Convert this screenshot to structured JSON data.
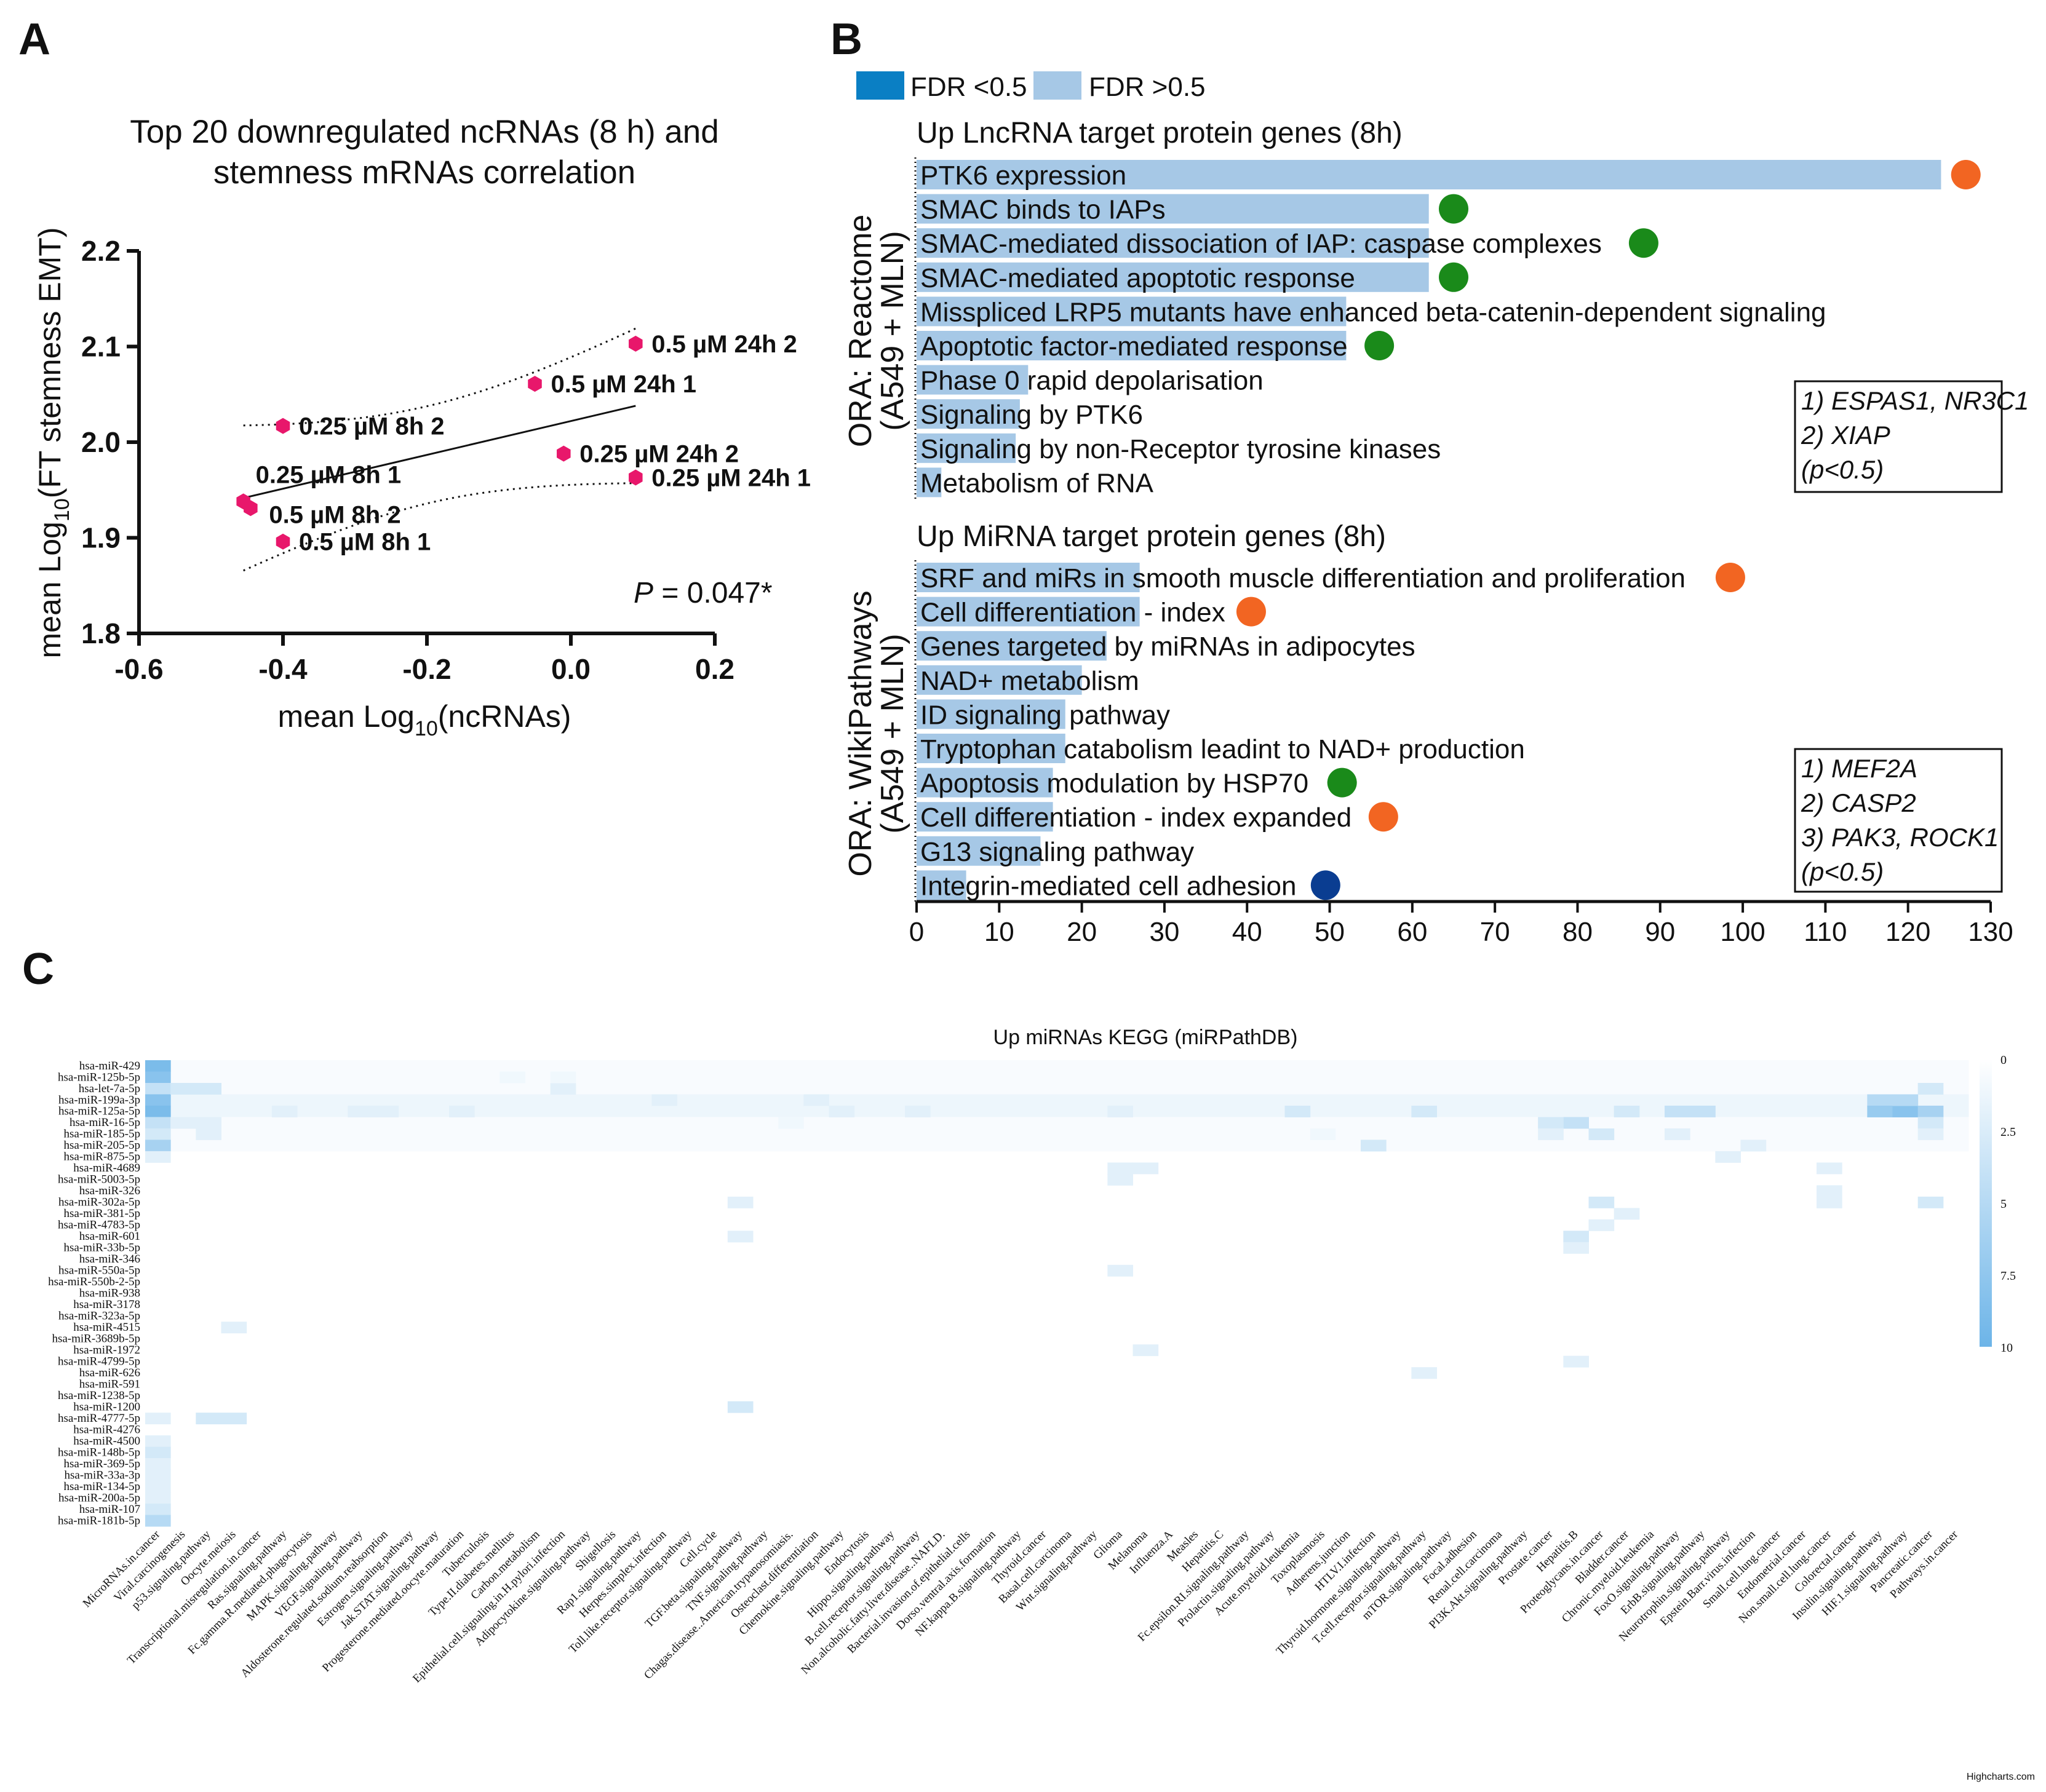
{
  "panels": {
    "a": "A",
    "b": "B",
    "c": "C"
  },
  "chart_data": [
    {
      "type": "scatter",
      "title_lines": [
        "Top 20 downregulated ncRNAs (8 h) and",
        "stemness mRNAs correlation"
      ],
      "xlabel_main": "mean Log",
      "xlabel_sub": "10",
      "xlabel_tail": "(ncRNAs)",
      "ylabel_main": "mean Log",
      "ylabel_sub": "10",
      "ylabel_tail": "(FT stemness EMT)",
      "xlim": [
        -0.6,
        0.2
      ],
      "ylim": [
        1.8,
        2.2
      ],
      "xticks": [
        "-0.6",
        "-0.4",
        "-0.2",
        "0.0",
        "0.2"
      ],
      "yticks": [
        "1.8",
        "1.9",
        "2.0",
        "2.1",
        "2.2"
      ],
      "points": [
        {
          "label": "0.5 µM 24h 2",
          "x": 0.09,
          "y": 2.103
        },
        {
          "label": "0.5 µM 24h 1",
          "x": -0.05,
          "y": 2.061
        },
        {
          "label": "0.25 µM 8h 2",
          "x": -0.4,
          "y": 2.017
        },
        {
          "label": "0.25 µM 24h 2",
          "x": -0.01,
          "y": 1.988
        },
        {
          "label": "0.25 µM 24h 1",
          "x": 0.09,
          "y": 1.963
        },
        {
          "label": "0.25 µM 8h 1",
          "x": -0.455,
          "y": 1.938
        },
        {
          "label": "0.5 µM 8h 2",
          "x": -0.445,
          "y": 1.931
        },
        {
          "label": "0.5 µM 8h 1",
          "x": -0.4,
          "y": 1.896
        }
      ],
      "p_label": "P",
      "p_value": " = 0.047*"
    },
    {
      "type": "bar",
      "legend": [
        {
          "label": "FDR <0.5",
          "color": "#0a7fc4"
        },
        {
          "label": "FDR >0.5",
          "color": "#a6c8e6"
        }
      ],
      "xlim": [
        0,
        130
      ],
      "xticks": [
        "0",
        "10",
        "20",
        "30",
        "40",
        "50",
        "60",
        "70",
        "80",
        "90",
        "100",
        "110",
        "120",
        "130"
      ],
      "groups": [
        {
          "title": "Up LncRNA target protein genes (8h)",
          "axis_label_lines": [
            "ORA: Reactome",
            "(A549 + MLN)"
          ],
          "items": [
            {
              "label": "PTK6 expression",
              "value": 124,
              "dot": 127,
              "dot_color": "#f26522"
            },
            {
              "label": "SMAC binds to IAPs",
              "value": 62,
              "dot": 65,
              "dot_color": "#1a8a1a"
            },
            {
              "label": "SMAC-mediated dissociation of IAP: caspase complexes",
              "value": 62,
              "dot": 88,
              "dot_color": "#1a8a1a"
            },
            {
              "label": "SMAC-mediated apoptotic response",
              "value": 62,
              "dot": 65,
              "dot_color": "#1a8a1a"
            },
            {
              "label": "Misspliced LRP5 mutants have enhanced beta-catenin-dependent signaling",
              "value": 52
            },
            {
              "label": "Apoptotic factor-mediated response",
              "value": 52,
              "dot": 56,
              "dot_color": "#1a8a1a"
            },
            {
              "label": "Phase 0 rapid depolarisation",
              "value": 13.5
            },
            {
              "label": "Signaling by PTK6",
              "value": 12.5
            },
            {
              "label": "Signaling by non-Receptor tyrosine kinases",
              "value": 12
            },
            {
              "label": "Metabolism of RNA",
              "value": 3
            }
          ],
          "note": [
            {
              "text": "1) ESPAS1, NR3C1",
              "color": "#f26522"
            },
            {
              "text": "2) XIAP",
              "color": "#1a8a1a"
            },
            {
              "text": "(p<0.5)",
              "color": "#111111"
            }
          ]
        },
        {
          "title": "Up MiRNA target protein genes (8h)",
          "axis_label_lines": [
            "ORA: WikiPathways",
            "(A549 + MLN)"
          ],
          "items": [
            {
              "label": "SRF and miRs in smooth muscle differentiation and proliferation",
              "value": 27,
              "dot": 98.5,
              "dot_color": "#f26522"
            },
            {
              "label": "Cell differentiation - index",
              "value": 27,
              "dot": 40.5,
              "dot_color": "#f26522"
            },
            {
              "label": "Genes targeted by miRNAs in adipocytes",
              "value": 23
            },
            {
              "label": "NAD+ metabolism",
              "value": 20
            },
            {
              "label": "ID signaling pathway",
              "value": 18
            },
            {
              "label": "Tryptophan catabolism leadint to NAD+ production",
              "value": 18
            },
            {
              "label": "Apoptosis modulation by HSP70",
              "value": 16.5,
              "dot": 51.5,
              "dot_color": "#1a8a1a"
            },
            {
              "label": "Cell differentiation - index expanded",
              "value": 16.5,
              "dot": 56.5,
              "dot_color": "#f26522"
            },
            {
              "label": "G13 signaling pathway",
              "value": 15
            },
            {
              "label": "Integrin-mediated cell adhesion",
              "value": 6,
              "dot": 49.5,
              "dot_color": "#0a3d91"
            }
          ],
          "note": [
            {
              "text": "1) MEF2A",
              "color": "#f26522"
            },
            {
              "text": "2) CASP2",
              "color": "#1a8a1a"
            },
            {
              "text": "3) PAK3, ROCK1",
              "color": "#0a3d91"
            },
            {
              "text": "(p<0.5)",
              "color": "#111111"
            }
          ]
        }
      ]
    },
    {
      "type": "heatmap",
      "title": "Up miRNAs KEGG (miRPathDB)",
      "rows": [
        "hsa-miR-429",
        "hsa-miR-125b-5p",
        "hsa-let-7a-5p",
        "hsa-miR-199a-3p",
        "hsa-miR-125a-5p",
        "hsa-miR-16-5p",
        "hsa-miR-185-5p",
        "hsa-miR-205-5p",
        "hsa-miR-875-5p",
        "hsa-miR-4689",
        "hsa-miR-5003-5p",
        "hsa-miR-326",
        "hsa-miR-302a-5p",
        "hsa-miR-381-5p",
        "hsa-miR-4783-5p",
        "hsa-miR-601",
        "hsa-miR-33b-5p",
        "hsa-miR-346",
        "hsa-miR-550a-5p",
        "hsa-miR-550b-2-5p",
        "hsa-miR-938",
        "hsa-miR-3178",
        "hsa-miR-323a-5p",
        "hsa-miR-4515",
        "hsa-miR-3689b-5p",
        "hsa-miR-1972",
        "hsa-miR-4799-5p",
        "hsa-miR-626",
        "hsa-miR-591",
        "hsa-miR-1238-5p",
        "hsa-miR-1200",
        "hsa-miR-4777-5p",
        "hsa-miR-4276",
        "hsa-miR-4500",
        "hsa-miR-148b-5p",
        "hsa-miR-369-5p",
        "hsa-miR-33a-3p",
        "hsa-miR-134-5p",
        "hsa-miR-200a-5p",
        "hsa-miR-107",
        "hsa-miR-181b-5p"
      ],
      "columns": [
        "MicroRNAs.in.cancer",
        "Viral.carcinogenesis",
        "p53.signaling.pathway",
        "Oocyte.meiosis",
        "Transcriptional.misregulation.in.cancer",
        "Ras.signaling.pathway",
        "Fc.gamma.R.mediated.phagocytosis",
        "MAPK.signaling.pathway",
        "VEGF.signaling.pathway",
        "Aldosterone.regulated.sodium.reabsorption",
        "Estrogen.signaling.pathway",
        "Jak.STAT.signaling.pathway",
        "Progesterone.mediated.oocyte.maturation",
        "Tuberculosis",
        "Type.II.diabetes.mellitus",
        "Carbon.metabolism",
        "Epithelial.cell.signaling.in.H.pylori.infection",
        "Adipocytokine.signaling.pathway",
        "Shigellosis",
        "Rap1.signaling.pathway",
        "Herpes.simplex.infection",
        "Toll.like.receptor.signaling.pathway",
        "Cell.cycle",
        "TGF.beta.signaling.pathway",
        "TNF.signaling.pathway",
        "Chagas.disease..American.trypanosomiasis.",
        "Osteoclast.differentiation",
        "Chemokine.signaling.pathway",
        "Endocytosis",
        "Hippo.signaling.pathway",
        "B.cell.receptor.signaling.pathway",
        "Non.alcoholic.fatty.liver.disease..NAFLD.",
        "Bacterial.invasion.of.epithelial.cells",
        "Dorso.ventral.axis.formation",
        "NF.kappa.B.signaling.pathway",
        "Thyroid.cancer",
        "Basal.cell.carcinoma",
        "Wnt.signaling.pathway",
        "Glioma",
        "Melanoma",
        "Influenza.A",
        "Measles",
        "Hepatitis.C",
        "Fc.epsilon.RI.signaling.pathway",
        "Prolactin.signaling.pathway",
        "Acute.myeloid.leukemia",
        "Toxoplasmosis",
        "Adherens.junction",
        "HTLV.I.infection",
        "Thyroid.hormone.signaling.pathway",
        "T.cell.receptor.signaling.pathway",
        "mTOR.signaling.pathway",
        "Focal.adhesion",
        "Renal.cell.carcinoma",
        "PI3K.Akt.signaling.pathway",
        "Prostate.cancer",
        "Hepatitis.B",
        "Proteoglycans.in.cancer",
        "Bladder.cancer",
        "Chronic.myeloid.leukemia",
        "FoxO.signaling.pathway",
        "ErbB.signaling.pathway",
        "Neurotrophin.signaling.pathway",
        "Epstein.Barr.virus.infection",
        "Small.cell.lung.cancer",
        "Endometrial.cancer",
        "Non.small.cell.lung.cancer",
        "Colorectal.cancer",
        "Insulin.signaling.pathway",
        "HIF.1.signaling.pathway",
        "Pancreatic.cancer",
        "Pathways.in.cancer"
      ],
      "color_range": [
        0,
        10
      ],
      "colorbar_ticks": [
        "0",
        "2.5",
        "5",
        "7.5",
        "10"
      ],
      "color_low": "#ffffff",
      "color_high": "#6cb4e8",
      "highlights": [
        [
          0,
          0,
          9
        ],
        [
          1,
          0,
          8
        ],
        [
          2,
          0,
          4
        ],
        [
          3,
          0,
          8
        ],
        [
          4,
          0,
          9
        ],
        [
          5,
          0,
          4
        ],
        [
          6,
          0,
          3
        ],
        [
          7,
          0,
          6
        ],
        [
          8,
          0,
          2
        ],
        [
          31,
          0,
          2
        ],
        [
          33,
          0,
          2
        ],
        [
          34,
          0,
          3
        ],
        [
          35,
          0,
          2
        ],
        [
          36,
          0,
          2
        ],
        [
          37,
          0,
          2
        ],
        [
          38,
          0,
          2
        ],
        [
          39,
          0,
          3
        ],
        [
          40,
          0,
          5
        ],
        [
          2,
          1,
          3
        ],
        [
          2,
          2,
          3
        ],
        [
          5,
          1,
          2
        ],
        [
          5,
          2,
          2
        ],
        [
          6,
          2,
          2
        ],
        [
          31,
          2,
          3
        ],
        [
          31,
          3,
          3
        ],
        [
          3,
          68,
          5
        ],
        [
          4,
          68,
          7
        ],
        [
          4,
          69,
          8
        ],
        [
          4,
          70,
          6
        ],
        [
          3,
          69,
          5
        ],
        [
          2,
          70,
          3
        ],
        [
          5,
          70,
          3
        ],
        [
          6,
          70,
          2
        ],
        [
          12,
          70,
          3
        ],
        [
          4,
          60,
          4
        ],
        [
          4,
          61,
          4
        ],
        [
          4,
          58,
          3
        ],
        [
          5,
          56,
          4
        ],
        [
          5,
          55,
          3
        ],
        [
          6,
          57,
          3
        ],
        [
          6,
          55,
          2
        ],
        [
          4,
          50,
          3
        ],
        [
          4,
          45,
          3
        ],
        [
          4,
          38,
          2
        ],
        [
          4,
          30,
          2
        ],
        [
          4,
          27,
          2
        ],
        [
          4,
          12,
          2
        ],
        [
          4,
          8,
          2
        ],
        [
          4,
          9,
          2
        ],
        [
          4,
          5,
          2
        ],
        [
          3,
          20,
          2
        ],
        [
          3,
          26,
          2
        ],
        [
          9,
          38,
          2
        ],
        [
          10,
          38,
          2
        ],
        [
          9,
          39,
          2
        ],
        [
          12,
          57,
          3
        ],
        [
          13,
          58,
          2
        ],
        [
          14,
          57,
          2
        ],
        [
          15,
          56,
          3
        ],
        [
          16,
          56,
          2
        ],
        [
          7,
          48,
          3
        ],
        [
          23,
          3,
          2
        ],
        [
          18,
          38,
          2
        ],
        [
          25,
          39,
          2
        ],
        [
          26,
          56,
          2
        ],
        [
          27,
          50,
          2
        ],
        [
          30,
          23,
          3
        ],
        [
          12,
          23,
          2
        ],
        [
          15,
          23,
          2
        ],
        [
          2,
          16,
          2
        ],
        [
          1,
          16,
          1
        ],
        [
          1,
          14,
          1
        ],
        [
          5,
          25,
          1
        ],
        [
          6,
          46,
          1
        ],
        [
          6,
          60,
          2
        ],
        [
          7,
          63,
          2
        ],
        [
          8,
          62,
          2
        ],
        [
          9,
          66,
          2
        ],
        [
          11,
          66,
          2
        ],
        [
          12,
          66,
          2
        ]
      ]
    }
  ],
  "footer": {
    "credit": "Highcharts.com"
  }
}
